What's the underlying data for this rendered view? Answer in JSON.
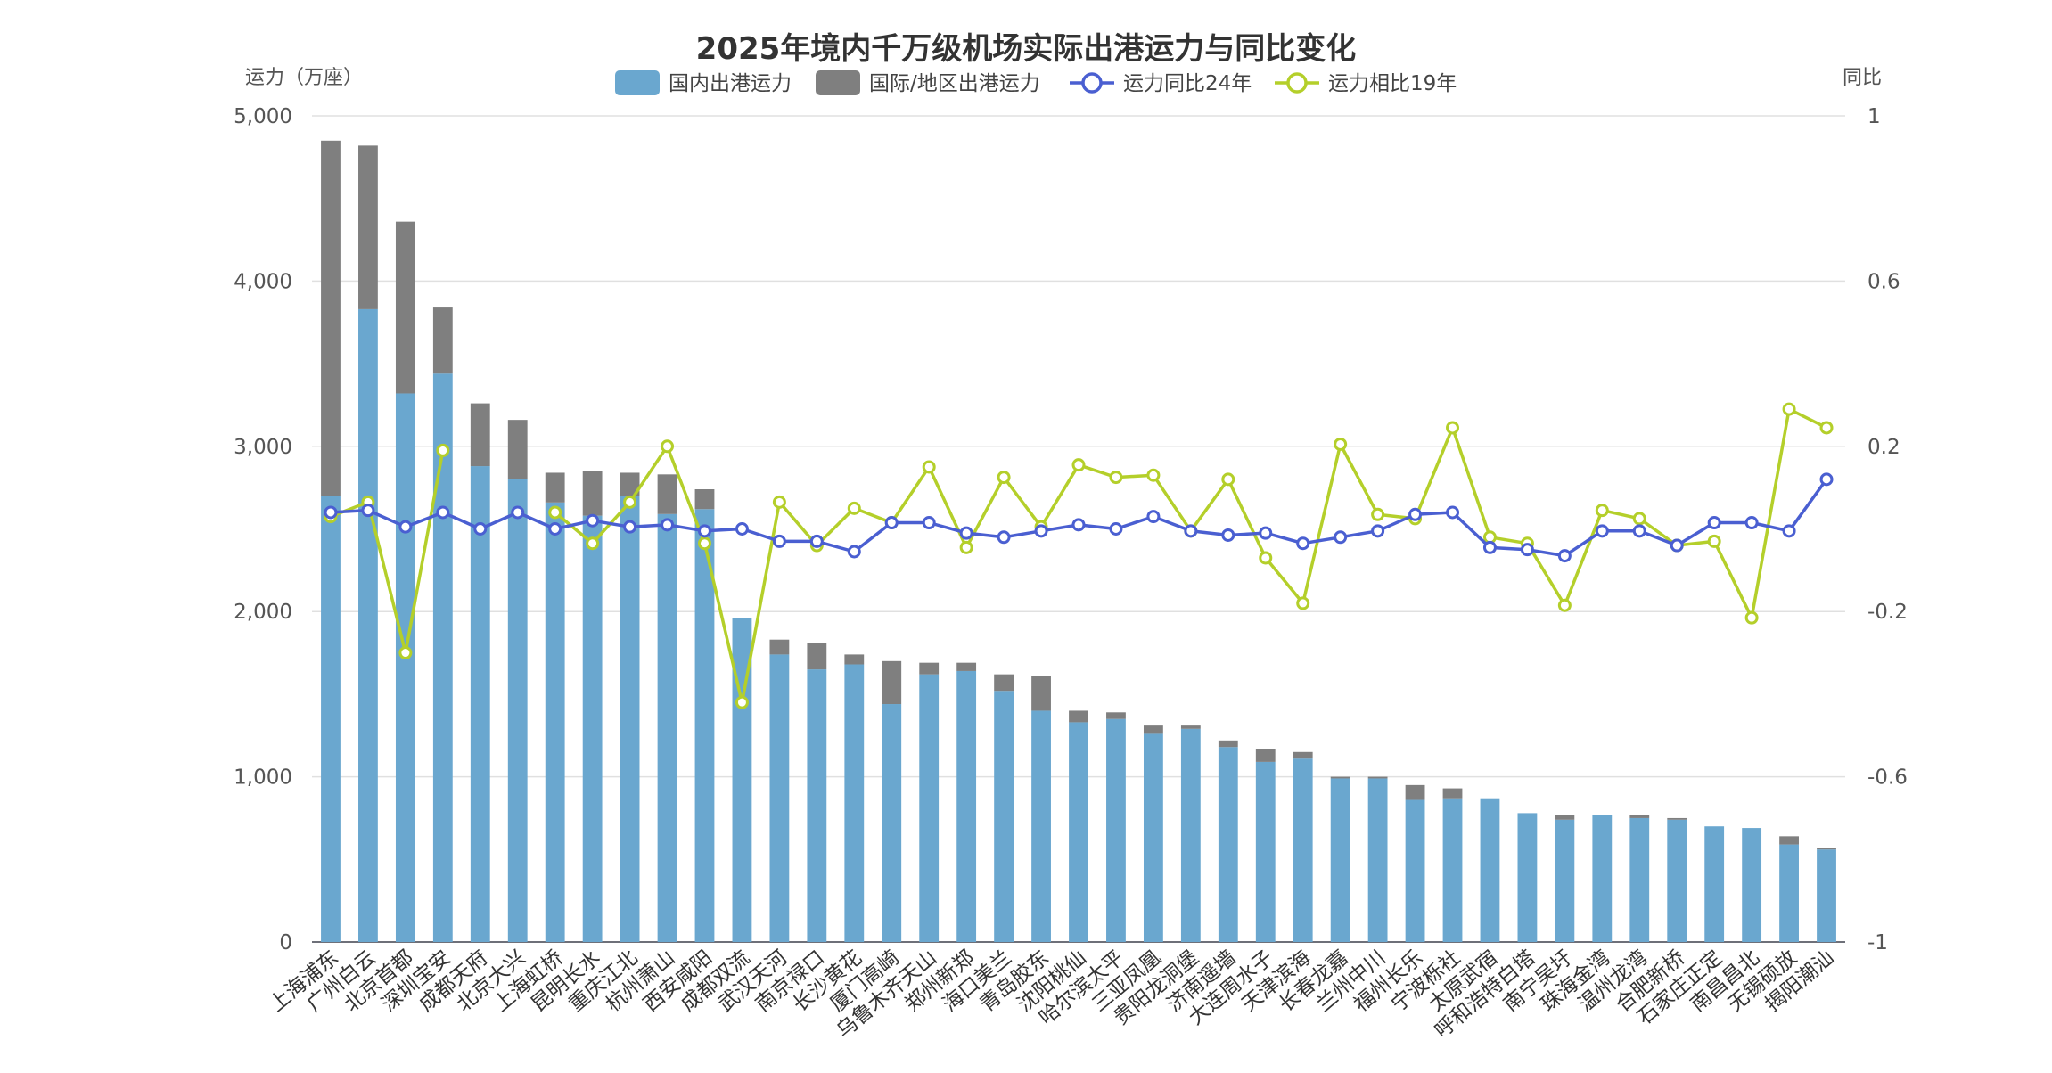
{
  "chart_data": {
    "type": "bar",
    "title": "2025年境内千万级机场实际出港运力与同比变化",
    "ylabel_left": "运力（万座）",
    "ylabel_right": "同比",
    "ylim_left": [
      0,
      5000
    ],
    "ylim_right": [
      -1,
      1
    ],
    "yticks_left": [
      "0",
      "1,000",
      "2,000",
      "3,000",
      "4,000",
      "5,000"
    ],
    "yticks_right": [
      "-1",
      "-0.6",
      "-0.2",
      "0.2",
      "0.6",
      "1"
    ],
    "legend_position": "top-center",
    "categories": [
      "上海浦东",
      "广州白云",
      "北京首都",
      "深圳宝安",
      "成都天府",
      "北京大兴",
      "上海虹桥",
      "昆明长水",
      "重庆江北",
      "杭州萧山",
      "西安咸阳",
      "成都双流",
      "武汉天河",
      "南京禄口",
      "长沙黄花",
      "厦门高崎",
      "乌鲁木齐天山",
      "郑州新郑",
      "海口美兰",
      "青岛胶东",
      "沈阳桃仙",
      "哈尔滨太平",
      "三亚凤凰",
      "贵阳龙洞堡",
      "济南遥墙",
      "大连周水子",
      "天津滨海",
      "长春龙嘉",
      "兰州中川",
      "福州长乐",
      "宁波栎社",
      "太原武宿",
      "呼和浩特白塔",
      "南宁吴圩",
      "珠海金湾",
      "温州龙湾",
      "合肥新桥",
      "石家庄正定",
      "南昌昌北",
      "无锡硕放",
      "揭阳潮汕"
    ],
    "series": [
      {
        "name": "国内出港运力",
        "kind": "bar",
        "color": "#6aa7cf",
        "values": [
          2700,
          3830,
          3320,
          3440,
          2880,
          2800,
          2660,
          2580,
          2700,
          2590,
          2620,
          1960,
          1740,
          1650,
          1680,
          1440,
          1620,
          1640,
          1520,
          1400,
          1330,
          1350,
          1260,
          1290,
          1180,
          1090,
          1110,
          990,
          990,
          860,
          870,
          870,
          780,
          740,
          770,
          750,
          740,
          700,
          690,
          590,
          560
        ]
      },
      {
        "name": "国际/地区出港运力",
        "kind": "bar",
        "color": "#7f7f7f",
        "values": [
          2150,
          990,
          1040,
          400,
          380,
          360,
          180,
          270,
          140,
          240,
          120,
          0,
          90,
          160,
          60,
          260,
          70,
          50,
          100,
          210,
          70,
          40,
          50,
          20,
          40,
          80,
          40,
          10,
          10,
          90,
          60,
          0,
          0,
          30,
          0,
          20,
          10,
          0,
          0,
          50,
          10
        ]
      },
      {
        "name": "运力同比24年",
        "kind": "line",
        "color": "#4a5fd1",
        "values": [
          0.04,
          0.045,
          0.005,
          0.04,
          0.0,
          0.04,
          0.0,
          0.02,
          0.005,
          0.01,
          -0.005,
          0.0,
          -0.03,
          -0.03,
          -0.055,
          0.015,
          0.015,
          -0.01,
          -0.02,
          -0.005,
          0.01,
          0.0,
          0.03,
          -0.005,
          -0.015,
          -0.01,
          -0.035,
          -0.02,
          -0.005,
          0.035,
          0.04,
          -0.045,
          -0.05,
          -0.065,
          -0.005,
          -0.005,
          -0.04,
          0.015,
          0.015,
          -0.005,
          0.12
        ]
      },
      {
        "name": "运力相比19年",
        "kind": "line",
        "color": "#b4cf2a",
        "values": [
          0.03,
          0.065,
          -0.3,
          0.19,
          null,
          null,
          0.04,
          -0.035,
          0.065,
          0.2,
          -0.035,
          -0.42,
          0.065,
          -0.04,
          0.05,
          0.015,
          0.15,
          -0.045,
          0.125,
          0.005,
          0.155,
          0.125,
          0.13,
          -0.005,
          0.12,
          -0.07,
          -0.18,
          0.205,
          0.035,
          0.025,
          0.245,
          -0.02,
          -0.035,
          -0.185,
          0.045,
          0.025,
          -0.04,
          -0.03,
          -0.215,
          0.29,
          0.245
        ]
      }
    ]
  }
}
